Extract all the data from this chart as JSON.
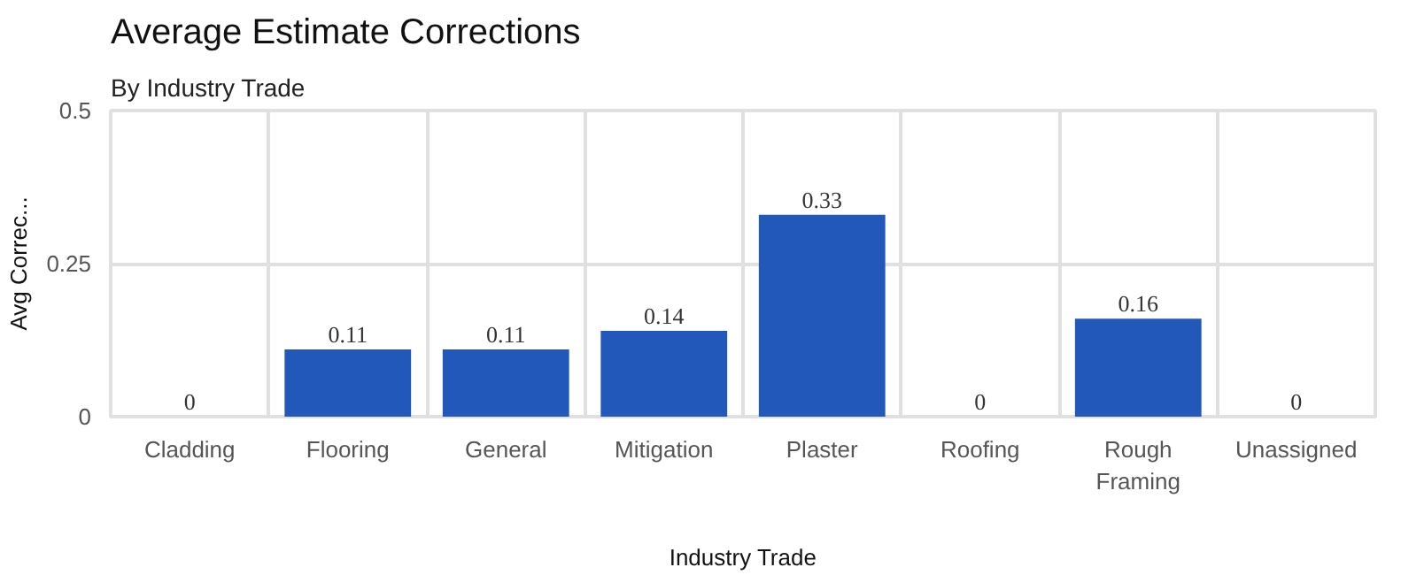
{
  "chart_data": {
    "type": "bar",
    "title": "Average Estimate Corrections",
    "subtitle": "By Industry Trade",
    "xlabel": "Industry Trade",
    "ylabel": "Avg Correc...",
    "categories": [
      "Cladding",
      "Flooring",
      "General",
      "Mitigation",
      "Plaster",
      "Roofing",
      "Rough Framing",
      "Unassigned"
    ],
    "values": [
      0,
      0.11,
      0.11,
      0.14,
      0.33,
      0,
      0.16,
      0
    ],
    "color": "#2258b9",
    "ylim": [
      0,
      0.5
    ],
    "yticks": [
      0,
      0.25,
      0.5
    ],
    "grid": true,
    "data_labels": true
  }
}
